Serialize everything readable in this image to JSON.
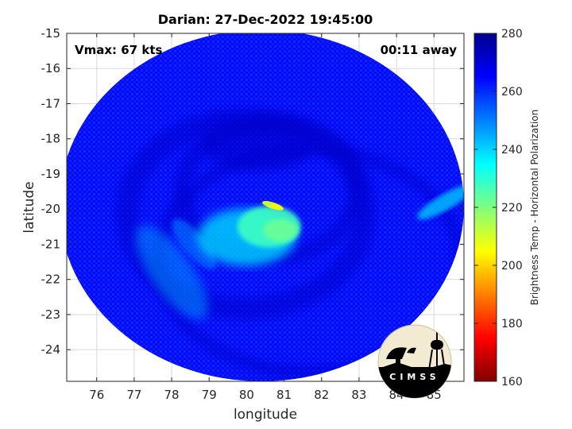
{
  "chart_data": {
    "type": "heatmap",
    "title": "Darian: 27-Dec-2022 19:45:00",
    "xlabel": "longitude",
    "ylabel": "latitude",
    "xlim": [
      75.2,
      85.8
    ],
    "ylim": [
      -24.9,
      -15.0
    ],
    "x_ticks": [
      76,
      77,
      78,
      79,
      80,
      81,
      82,
      83,
      84,
      85
    ],
    "y_ticks": [
      -15,
      -16,
      -17,
      -18,
      -19,
      -20,
      -21,
      -22,
      -23,
      -24
    ],
    "grid": true,
    "colorbar": {
      "label": "Brightness Temp - Horizontal Polarization",
      "range": [
        160,
        280
      ],
      "ticks": [
        280,
        260,
        240,
        220,
        200,
        180,
        160
      ],
      "colormap": "jet"
    },
    "annotations": {
      "vmax": "Vmax: 67 kts",
      "time_offset": "00:11 away"
    },
    "storm_center": {
      "lon": 80.5,
      "lat": -20.4
    },
    "swath": {
      "center_lon": 80.4,
      "center_lat": -19.9,
      "radius_lon": 5.4,
      "radius_lat": 5.0
    },
    "features": [
      {
        "kind": "warm-background",
        "value": 264
      },
      {
        "kind": "eyewall-core",
        "lon": 80.6,
        "lat": -20.5,
        "value": 228
      },
      {
        "kind": "eyewall-ring",
        "lon": 80.0,
        "lat": -20.8,
        "value": 238
      },
      {
        "kind": "deep-convection-spot",
        "lon": 80.7,
        "lat": -19.9,
        "value": 205
      },
      {
        "kind": "outer-rainband",
        "lon": 78.0,
        "lat": -21.8,
        "value": 246
      },
      {
        "kind": "east-rainband",
        "lon": 85.3,
        "lat": -19.8,
        "value": 240
      }
    ]
  },
  "logo": {
    "text": "CIMSS",
    "icon": "cimss-logo-icon"
  }
}
